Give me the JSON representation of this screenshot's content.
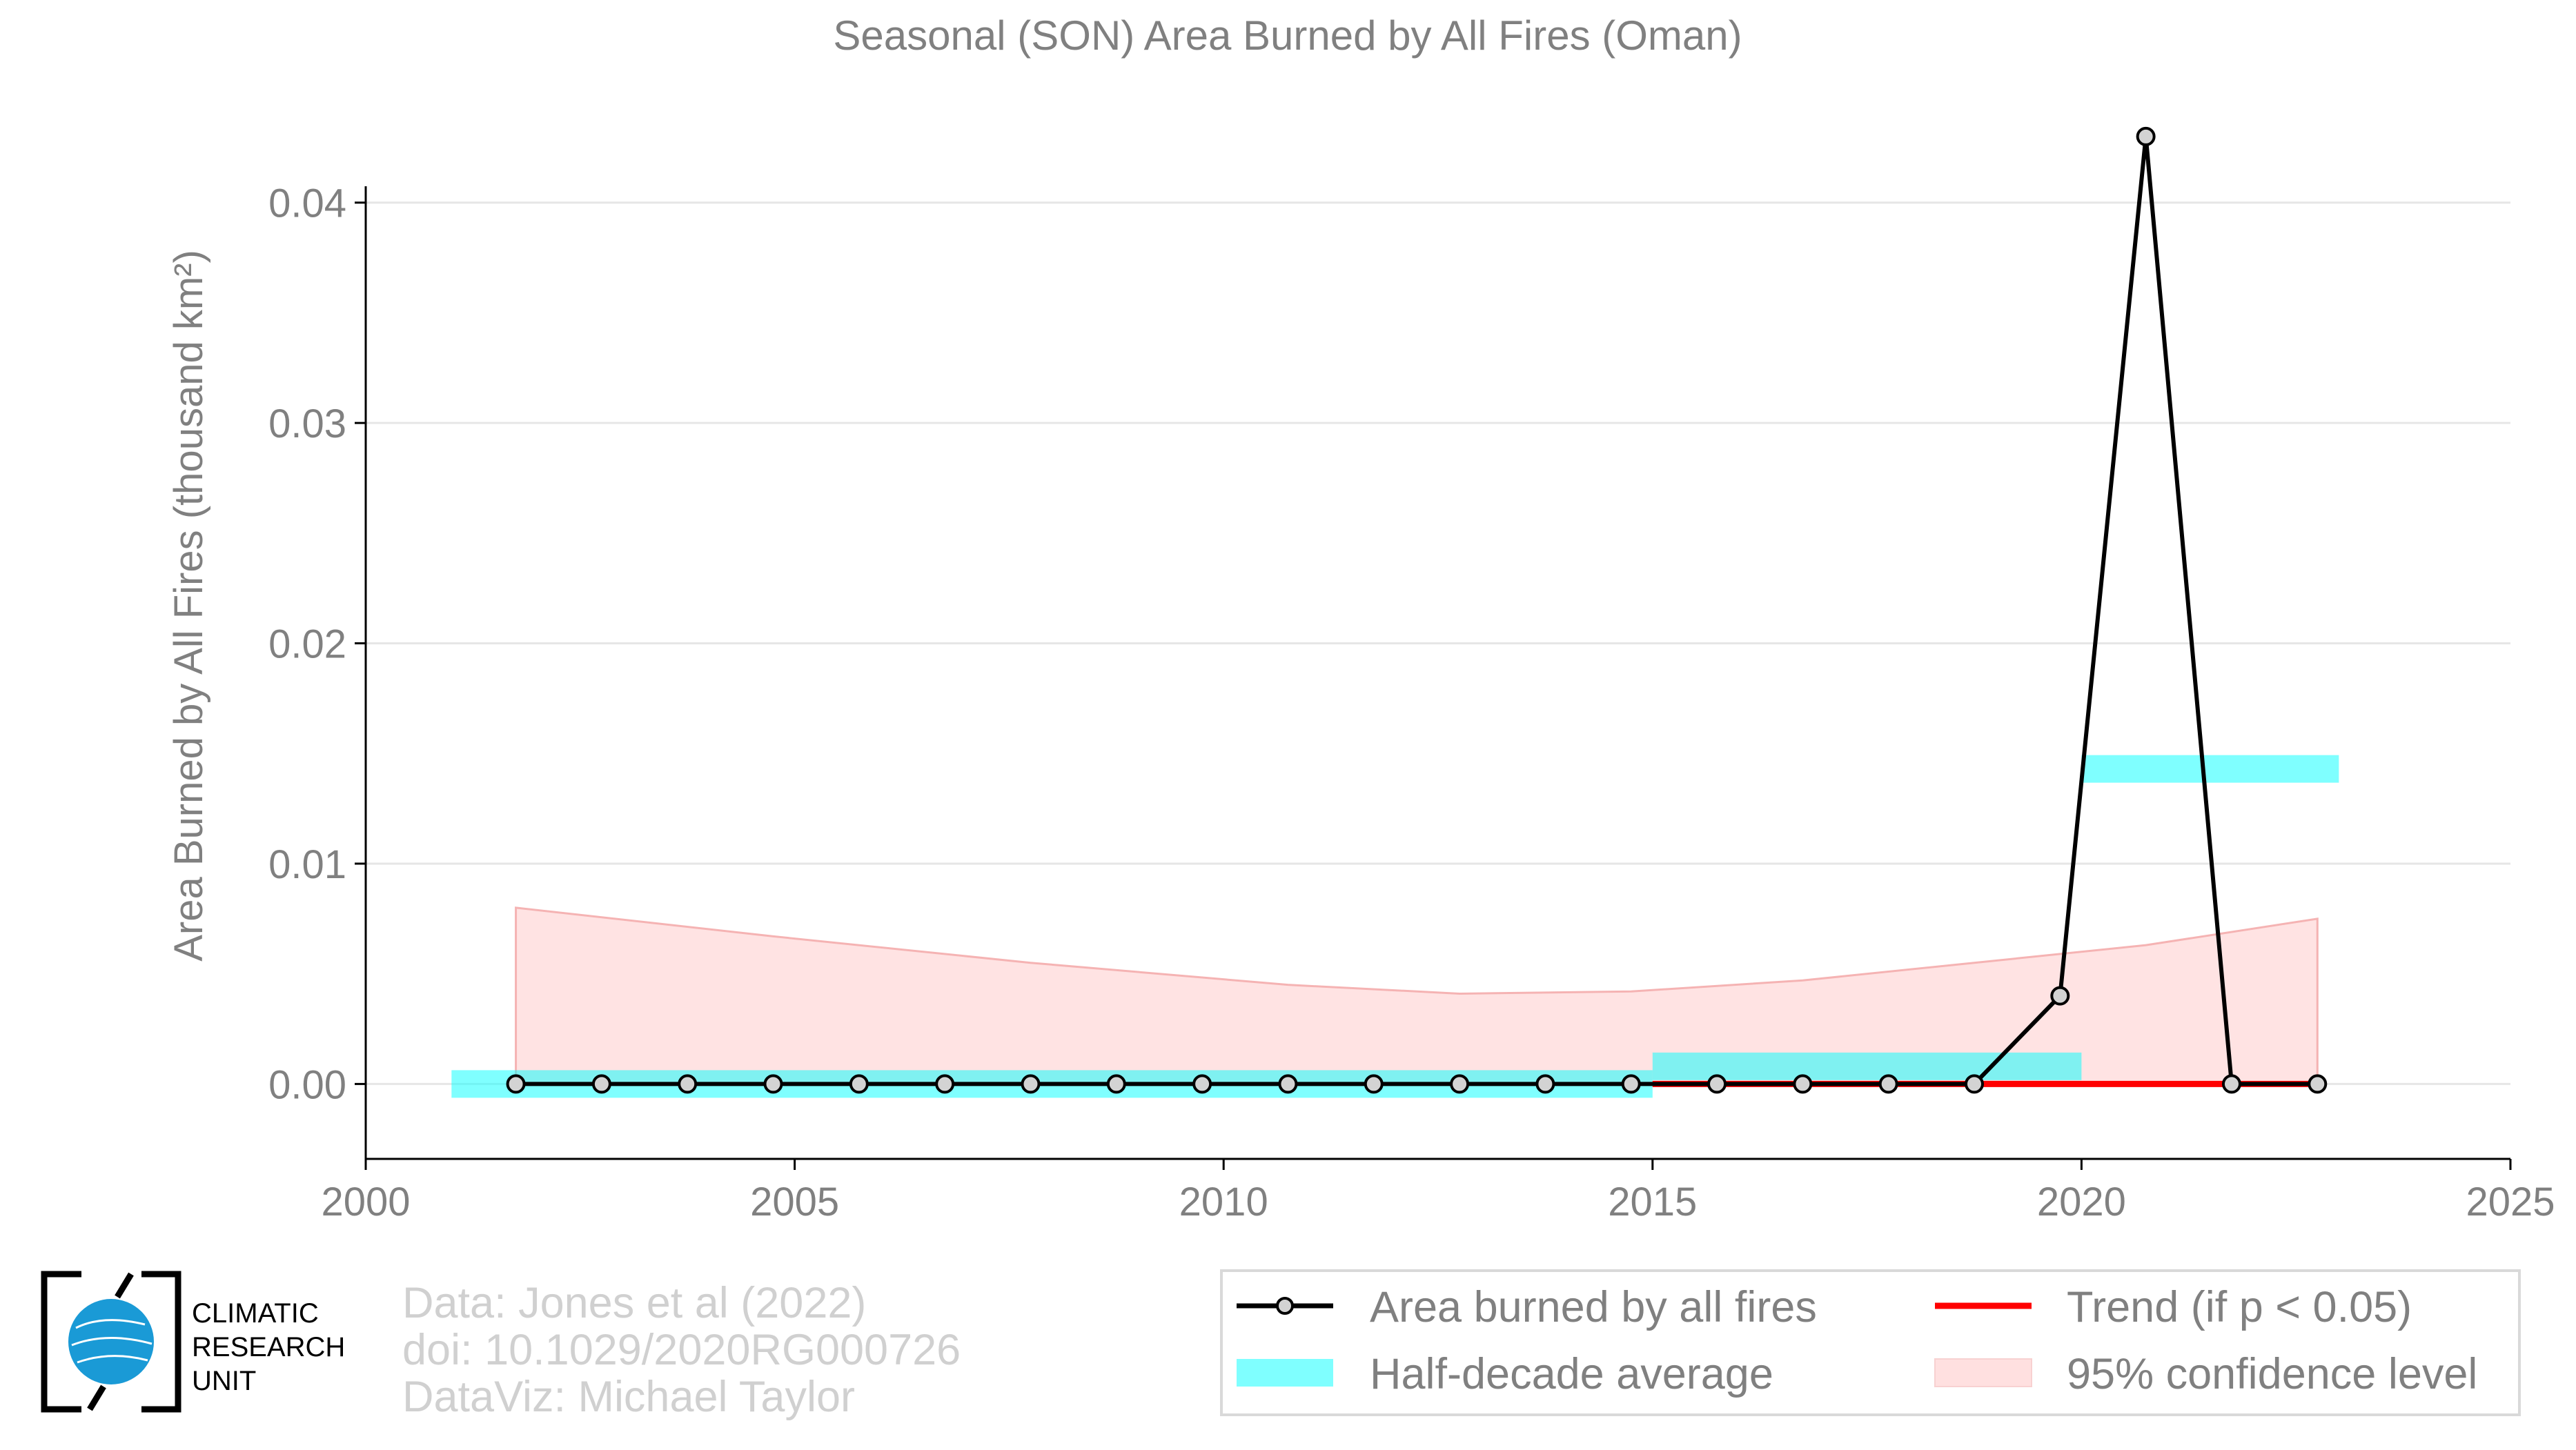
{
  "chart_data": {
    "type": "line",
    "title": "Seasonal (SON) Area Burned by All Fires (Oman)",
    "ylabel": "Area Burned by All Fires (thousand km²)",
    "xlabel": "",
    "xlim": [
      2000,
      2025
    ],
    "ylim": [
      -0.0034,
      0.0445
    ],
    "x_ticks": [
      2000,
      2005,
      2010,
      2015,
      2020,
      2025
    ],
    "y_ticks": [
      0.0,
      0.01,
      0.02,
      0.03,
      0.04
    ],
    "y_tick_labels": [
      "0.00",
      "0.01",
      "0.02",
      "0.03",
      "0.04"
    ],
    "grid": "horizontal",
    "legend_position": "bottom-right",
    "series": [
      {
        "name": "Area burned by all fires",
        "color": "#000000",
        "x": [
          2001.75,
          2002.75,
          2003.75,
          2004.75,
          2005.75,
          2006.75,
          2007.75,
          2008.75,
          2009.75,
          2010.75,
          2011.75,
          2012.75,
          2013.75,
          2014.75,
          2015.75,
          2016.75,
          2017.75,
          2018.75,
          2019.75,
          2020.75,
          2021.75,
          2022.75
        ],
        "values": [
          0,
          0,
          0,
          0,
          0,
          0,
          0,
          0,
          0,
          0,
          0,
          0,
          0,
          0,
          0,
          0,
          0,
          0,
          0.004,
          0.043,
          0,
          0
        ]
      }
    ],
    "half_decade_average": {
      "name": "Half-decade average",
      "color": "#00ffff",
      "segments": [
        {
          "x0": 2001.0,
          "x1": 2015.0,
          "y": 0.0
        },
        {
          "x0": 2015.0,
          "x1": 2020.0,
          "y": 0.0008
        },
        {
          "x0": 2020.0,
          "x1": 2023.0,
          "y": 0.0143
        }
      ]
    },
    "trend": {
      "name": "Trend (if p < 0.05)",
      "color": "#ff0000",
      "x0": 2015.0,
      "x1": 2022.75,
      "y": 0.0
    },
    "confidence_band": {
      "name": "95% confidence level",
      "color": "#ffcccc",
      "x": [
        2001.75,
        2004.75,
        2007.75,
        2010.75,
        2012.75,
        2014.75,
        2016.75,
        2018.75,
        2020.75,
        2022.75
      ],
      "upper": [
        0.008,
        0.0067,
        0.0055,
        0.0045,
        0.0041,
        0.0042,
        0.0047,
        0.0055,
        0.0063,
        0.0075
      ],
      "lower": [
        0,
        0,
        0,
        0,
        0,
        0,
        0,
        0,
        0,
        0
      ]
    }
  },
  "legend": {
    "items": [
      "Area burned by all fires",
      "Trend (if p < 0.05)",
      "Half-decade average",
      "95% confidence level"
    ]
  },
  "credits": {
    "line1": "Data: Jones et al (2022)",
    "line2": "doi: 10.1029/2020RG000726",
    "line3": "DataViz: Michael Taylor"
  },
  "logo": {
    "line1": "CLIMATIC",
    "line2": "RESEARCH",
    "line3": "UNIT"
  },
  "colors": {
    "axis_text": "#808080",
    "grid": "#e6e6e6",
    "credits": "#d0d0d0"
  }
}
